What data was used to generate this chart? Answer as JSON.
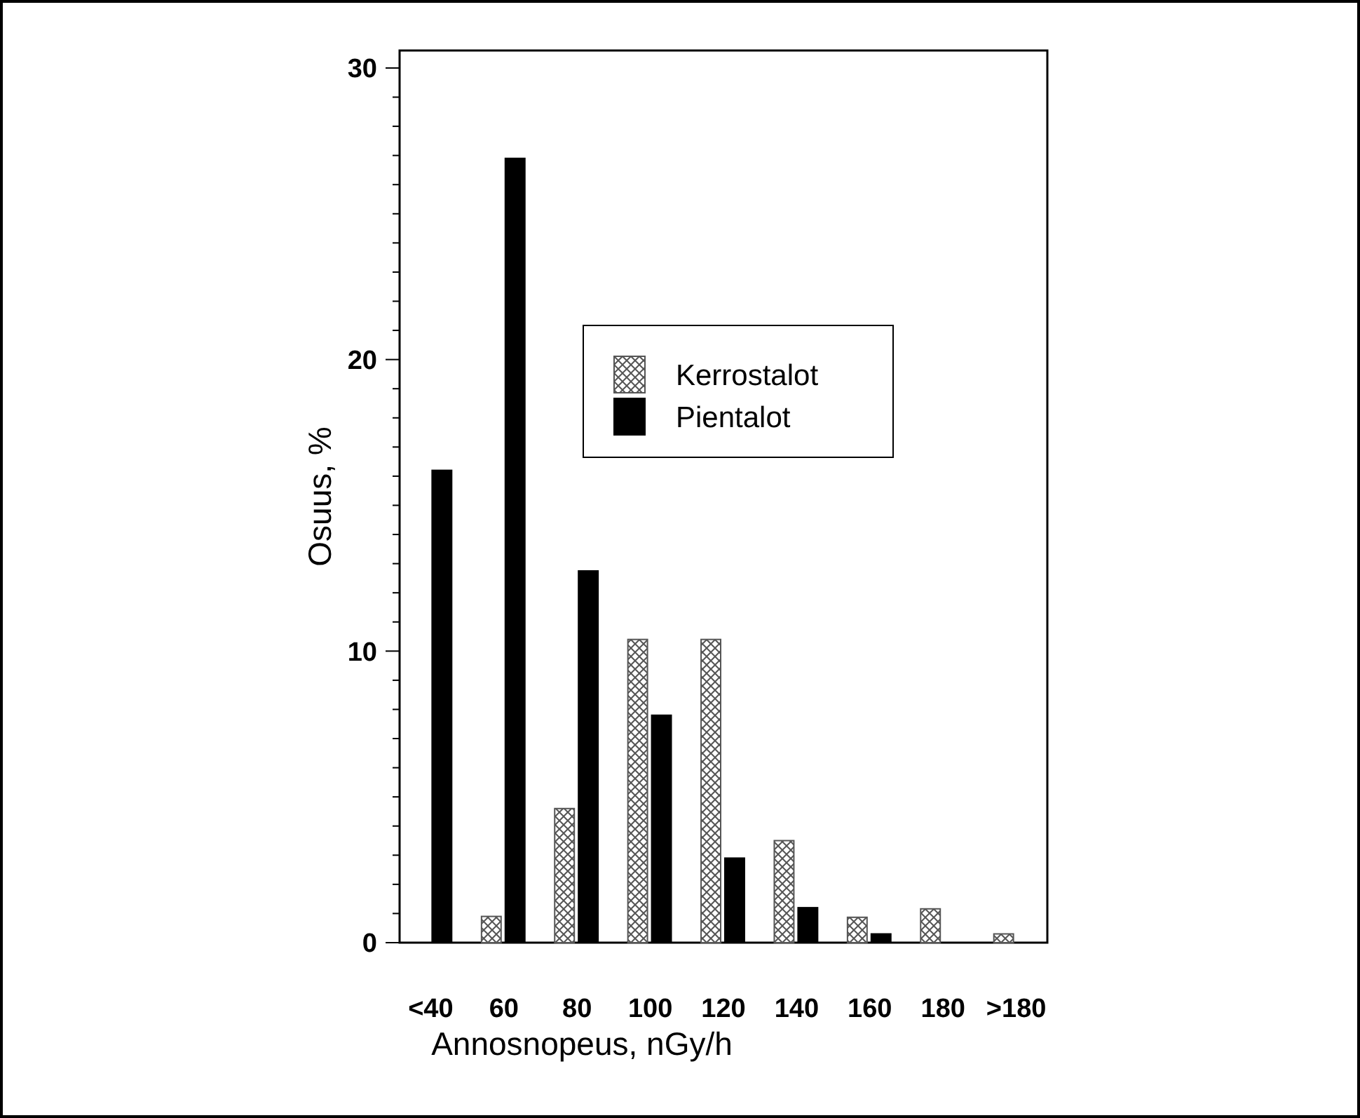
{
  "chart_data": {
    "type": "bar",
    "xlabel": "Annosnopeus,  nGy/h",
    "ylabel": "Osuus,  %",
    "categories": [
      "<40",
      "60",
      "80",
      "100",
      "120",
      "140",
      "160",
      "180",
      ">180"
    ],
    "series": [
      {
        "name": "Kerrostalot",
        "color": "#555555",
        "values": [
          null,
          0.9,
          4.6,
          10.4,
          10.4,
          3.5,
          0.87,
          1.16,
          0.3
        ]
      },
      {
        "name": "Pientalot",
        "color": "#000000",
        "values": [
          16.2,
          26.9,
          12.75,
          7.8,
          2.9,
          1.2,
          0.3,
          null,
          null
        ]
      }
    ],
    "ylim": [
      0,
      30.6
    ],
    "yticks": [
      0,
      {
        "value": 1,
        "label": null
      },
      {
        "value": 2,
        "label": null
      },
      {
        "value": 3,
        "label": null
      },
      {
        "value": 4,
        "label": null
      },
      {
        "value": 5,
        "label": null
      },
      {
        "value": 6,
        "label": null
      },
      {
        "value": 7,
        "label": null
      },
      {
        "value": 8,
        "label": null
      },
      {
        "value": 9,
        "label": null
      },
      10,
      {
        "value": 11,
        "label": null
      },
      {
        "value": 12,
        "label": null
      },
      {
        "value": 13,
        "label": null
      },
      {
        "value": 14,
        "label": null
      },
      {
        "value": 15,
        "label": null
      },
      {
        "value": 16,
        "label": null
      },
      {
        "value": 17,
        "label": null
      },
      {
        "value": 18,
        "label": null
      },
      {
        "value": 19,
        "label": null
      },
      20,
      {
        "value": 21,
        "label": null
      },
      {
        "value": 22,
        "label": null
      },
      {
        "value": 23,
        "label": null
      },
      {
        "value": 24,
        "label": null
      },
      {
        "value": 25,
        "label": null
      },
      {
        "value": 26,
        "label": null
      },
      {
        "value": 27,
        "label": null
      },
      {
        "value": 28,
        "label": null
      },
      {
        "value": 29,
        "label": null
      },
      30
    ],
    "legend": "top",
    "grid": false
  }
}
